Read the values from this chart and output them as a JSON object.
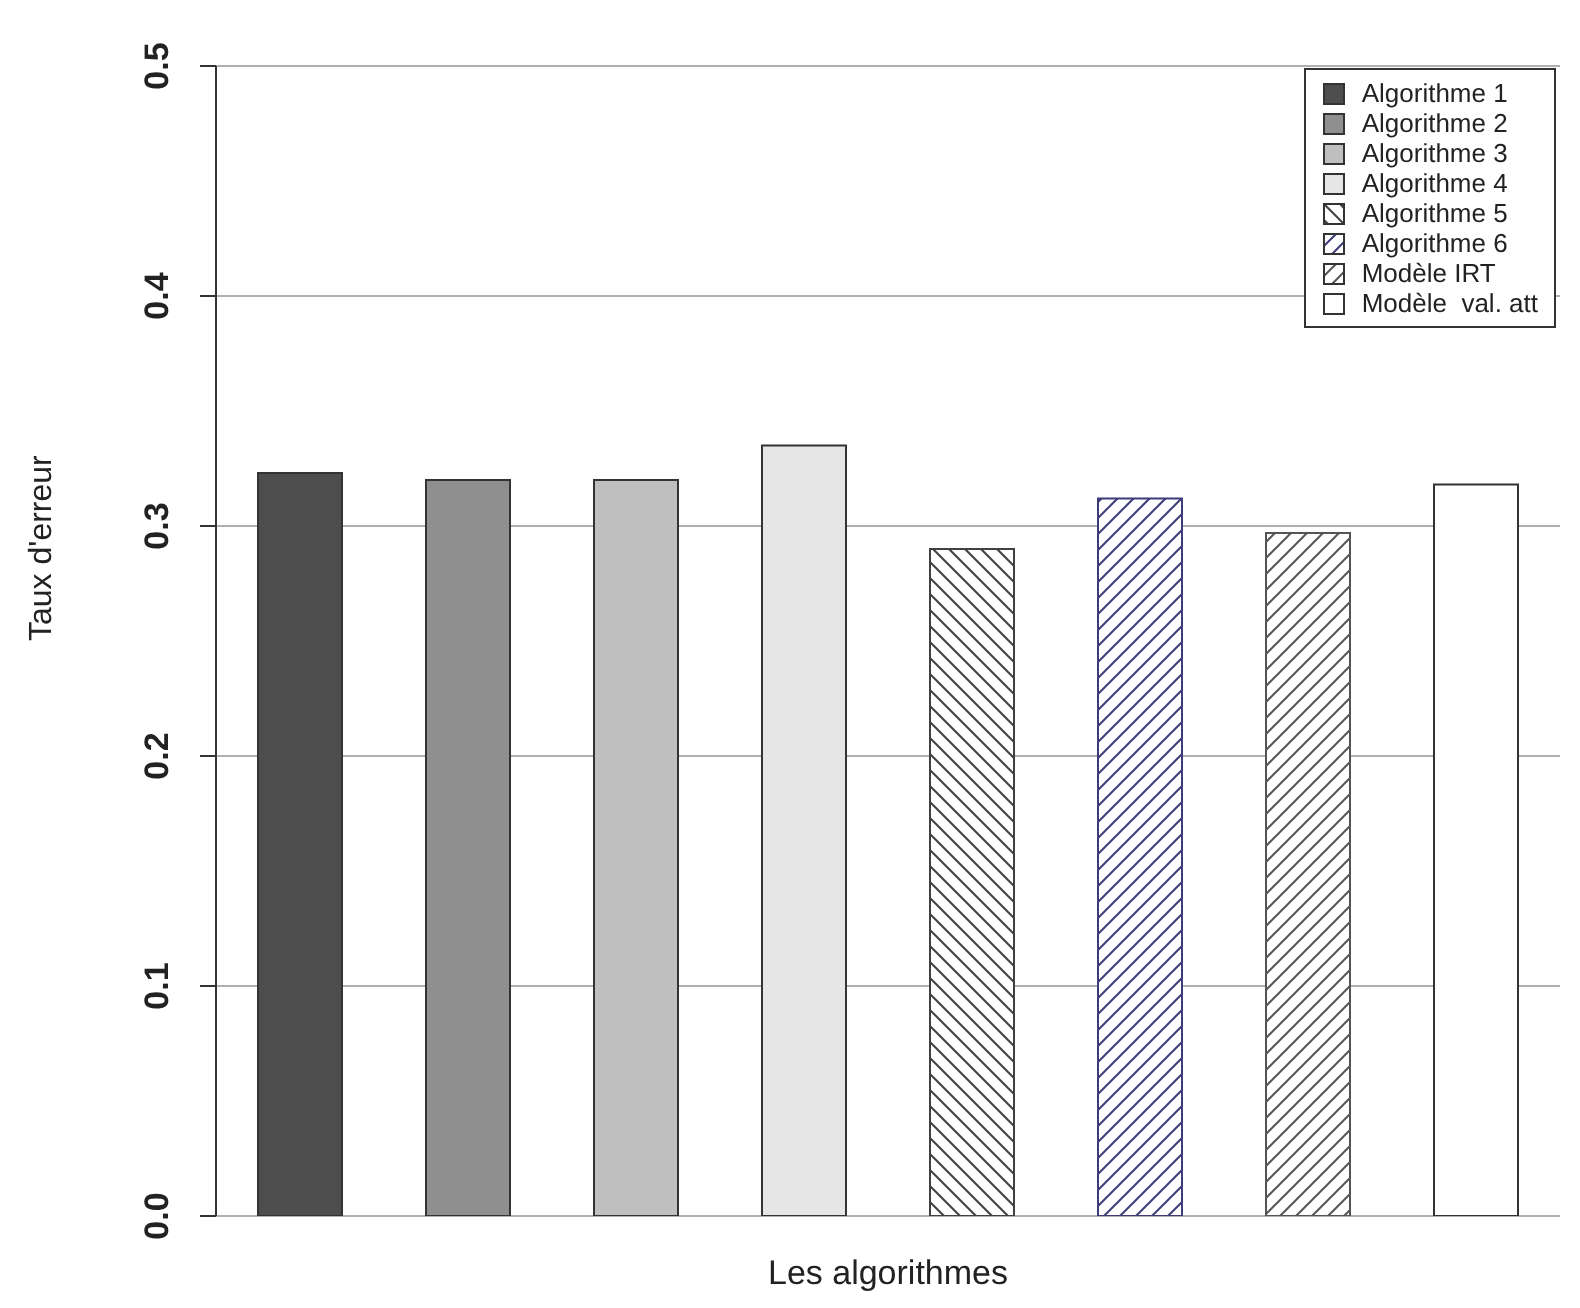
{
  "chart_data": {
    "type": "bar",
    "xlabel": "Les algorithmes",
    "ylabel": "Taux d'erreur",
    "categories": [
      null
    ],
    "series": [
      {
        "name": "Algorithme 1",
        "color": "#4d4d4d",
        "values": [
          0.323
        ]
      },
      {
        "name": "Algorithme 2",
        "color": "#8f8f8f",
        "values": [
          0.32
        ]
      },
      {
        "name": "Algorithme 3",
        "color": "#bfbfbf",
        "values": [
          0.32
        ]
      },
      {
        "name": "Algorithme 4",
        "color": "#e6e6e6",
        "values": [
          0.335
        ]
      },
      {
        "name": "Algorithme 5",
        "color": "#404040",
        "values": [
          0.29
        ]
      },
      {
        "name": "Algorithme 6",
        "color": "#3c3c78",
        "values": [
          0.312
        ]
      },
      {
        "name": "Modèle IRT",
        "color": "#555555",
        "values": [
          0.297
        ]
      },
      {
        "name": "Modèle  val. att",
        "color": "#ffffff",
        "values": [
          0.318
        ]
      }
    ],
    "ylim": [
      0,
      0.5
    ],
    "yticks": [
      {
        "value": 0,
        "label": "0.0"
      },
      0.1,
      0.2,
      0.3,
      0.4,
      0.5
    ],
    "grid": "y",
    "legend": "top right",
    "tick_labels": "y"
  }
}
